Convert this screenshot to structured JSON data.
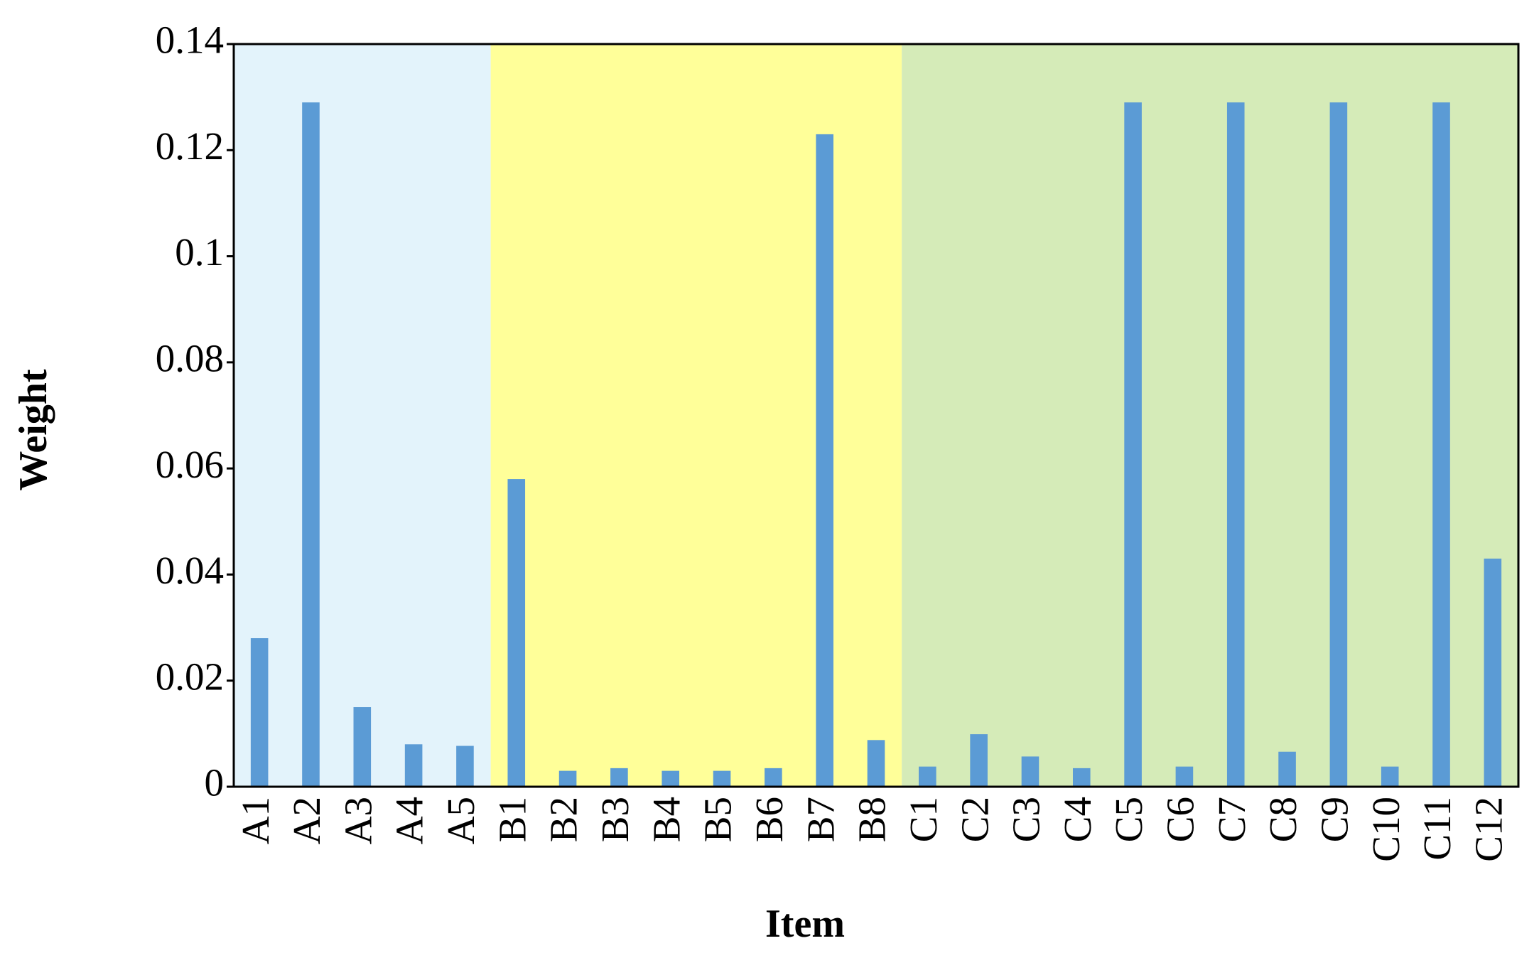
{
  "chart_data": {
    "type": "bar",
    "x_label": "Item",
    "y_label": "Weight",
    "categories": [
      "A1",
      "A2",
      "A3",
      "A4",
      "A5",
      "B1",
      "B2",
      "B3",
      "B4",
      "B5",
      "B6",
      "B7",
      "B8",
      "C1",
      "C2",
      "C3",
      "C4",
      "C5",
      "C6",
      "C7",
      "C8",
      "C9",
      "C10",
      "C11",
      "C12"
    ],
    "values": [
      0.028,
      0.129,
      0.015,
      0.008,
      0.0077,
      0.058,
      0.003,
      0.0035,
      0.003,
      0.003,
      0.0035,
      0.123,
      0.0088,
      0.0038,
      0.0099,
      0.0057,
      0.0035,
      0.129,
      0.0038,
      0.129,
      0.0066,
      0.129,
      0.0038,
      0.129,
      0.043
    ],
    "color": "#5b9bd5",
    "ylim": [
      0,
      0.14
    ],
    "yticks": [
      0,
      0.02,
      0.04,
      0.06,
      0.08,
      0.1,
      0.12,
      0.14
    ],
    "grid": false,
    "regions": [
      {
        "from": "A1",
        "to": "A5",
        "color": "#e3f3fb"
      },
      {
        "from": "B1",
        "to": "B8",
        "color": "#ffff99"
      },
      {
        "from": "C1",
        "to": "C12",
        "color": "#d5ebb8"
      }
    ]
  }
}
